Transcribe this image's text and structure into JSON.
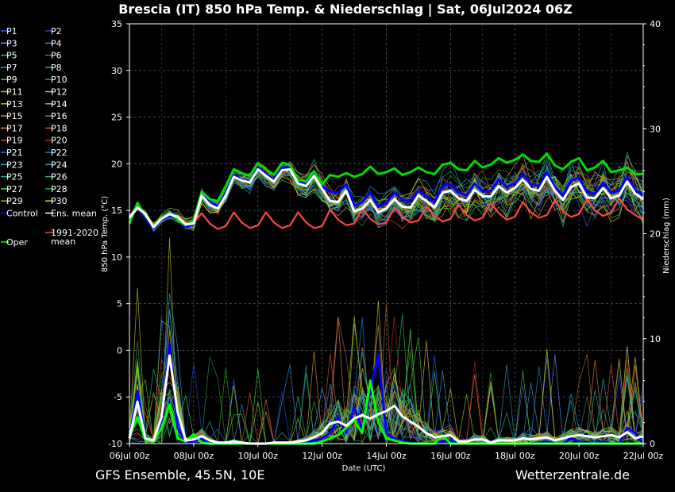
{
  "chart_data": {
    "type": "line",
    "title": "Brescia  (IT)  850 hPa Temp. & Niederschlag | Sat, 06Jul2024 06Z",
    "xlabel": "Date (UTC)",
    "ylabel_left": "850 hPa Temp. (°C)",
    "ylabel_right": "Niederschlag (mm)",
    "footer_left": "GFS Ensemble, 45.5N, 10E",
    "footer_right": "Wetterzentrale.de",
    "ylim_left": [
      -10,
      35
    ],
    "yticks_left": [
      "35",
      "30",
      "25",
      "20",
      "15",
      "10",
      "5",
      "0",
      "-5",
      "-10"
    ],
    "ylim_right": [
      0,
      40
    ],
    "yticks_right": [
      "40",
      "30",
      "20",
      "10",
      "0"
    ],
    "xlim_days": [
      0,
      16
    ],
    "xticks": [
      "06Jul 00z",
      "08Jul 00z",
      "10Jul 00z",
      "12Jul 00z",
      "14Jul 00z",
      "16Jul 00z",
      "18Jul 00z",
      "20Jul 00z",
      "22Jul 00z"
    ],
    "grid": true,
    "legend": [
      {
        "label": "P1",
        "color": "#3355ff"
      },
      {
        "label": "P2",
        "color": "#2244cc"
      },
      {
        "label": "P3",
        "color": "#6688ff"
      },
      {
        "label": "P4",
        "color": "#2a8ee6"
      },
      {
        "label": "P5",
        "color": "#20b2aa"
      },
      {
        "label": "P6",
        "color": "#2e8b57"
      },
      {
        "label": "P7",
        "color": "#1fa88a"
      },
      {
        "label": "P8",
        "color": "#22bb66"
      },
      {
        "label": "P9",
        "color": "#44cc22"
      },
      {
        "label": "P10",
        "color": "#33aa11"
      },
      {
        "label": "P11",
        "color": "#bbbb22"
      },
      {
        "label": "P12",
        "color": "#ccbb44"
      },
      {
        "label": "P13",
        "color": "#ddaa11"
      },
      {
        "label": "P14",
        "color": "#dd9933"
      },
      {
        "label": "P15",
        "color": "#cc8844"
      },
      {
        "label": "P16",
        "color": "#aa6633"
      },
      {
        "label": "P17",
        "color": "#dd7744"
      },
      {
        "label": "P18",
        "color": "#cc5533"
      },
      {
        "label": "P19",
        "color": "#dd4422"
      },
      {
        "label": "P20",
        "color": "#bb2222"
      },
      {
        "label": "P21",
        "color": "#3366ff"
      },
      {
        "label": "P22",
        "color": "#2288cc"
      },
      {
        "label": "P23",
        "color": "#3399cc"
      },
      {
        "label": "P24",
        "color": "#2299bb"
      },
      {
        "label": "P25",
        "color": "#22aa88"
      },
      {
        "label": "P26",
        "color": "#33bb77"
      },
      {
        "label": "P27",
        "color": "#44cc44"
      },
      {
        "label": "P28",
        "color": "#22aa33"
      },
      {
        "label": "P29",
        "color": "#88cc22"
      },
      {
        "label": "P30",
        "color": "#dddd00"
      },
      {
        "label": "Control",
        "color": "#0000ff"
      },
      {
        "label": "Ens. mean",
        "color": "#ffffff"
      },
      {
        "label": "1991-2020 mean",
        "color": "#ff4444"
      },
      {
        "label": "Oper",
        "color": "#00ff00"
      }
    ],
    "x_days": [
      0,
      0.25,
      0.5,
      0.75,
      1,
      1.25,
      1.5,
      1.75,
      2,
      2.25,
      2.5,
      2.75,
      3,
      3.25,
      3.5,
      3.75,
      4,
      4.25,
      4.5,
      4.75,
      5,
      5.25,
      5.5,
      5.75,
      6,
      6.25,
      6.5,
      6.75,
      7,
      7.25,
      7.5,
      7.75,
      8,
      8.25,
      8.5,
      8.75,
      9,
      9.25,
      9.5,
      9.75,
      10,
      10.25,
      10.5,
      10.75,
      11,
      11.25,
      11.5,
      11.75,
      12,
      12.25,
      12.5,
      12.75,
      13,
      13.25,
      13.5,
      13.75,
      14,
      14.25,
      14.5,
      14.75,
      15,
      15.25,
      15.5,
      15.75,
      16
    ],
    "series": [
      {
        "name": "Ens. mean",
        "axis": "temp",
        "values": [
          14.2,
          15.3,
          14.6,
          13.2,
          14.1,
          14.6,
          14.3,
          13.5,
          13.6,
          16.6,
          15.6,
          15.2,
          16.6,
          18.6,
          18.2,
          18.0,
          19.4,
          18.7,
          18.1,
          19.3,
          19.4,
          17.9,
          17.6,
          18.7,
          17.3,
          16.0,
          15.9,
          17.1,
          14.9,
          15.2,
          16.1,
          14.8,
          15.2,
          16.2,
          15.4,
          15.3,
          16.6,
          16.0,
          15.3,
          16.9,
          17.1,
          16.3,
          16.0,
          17.2,
          16.5,
          16.5,
          17.6,
          16.9,
          17.4,
          18.3,
          17.3,
          17.1,
          18.6,
          17.1,
          16.1,
          17.5,
          17.9,
          16.4,
          16.3,
          17.4,
          16.3,
          16.6,
          18.1,
          16.8,
          16.2
        ]
      },
      {
        "name": "Oper",
        "axis": "temp",
        "values": [
          13.6,
          15.8,
          14.4,
          13.4,
          14.2,
          14.7,
          14.0,
          13.4,
          13.9,
          17.0,
          16.2,
          16.0,
          17.6,
          19.4,
          19.0,
          18.7,
          20.1,
          19.4,
          18.8,
          20.1,
          19.9,
          18.3,
          18.1,
          19.2,
          17.8,
          18.8,
          18.6,
          19.0,
          18.6,
          18.9,
          19.7,
          18.9,
          19.1,
          19.5,
          18.8,
          19.1,
          19.6,
          19.1,
          18.9,
          19.9,
          20.1,
          19.4,
          19.3,
          20.3,
          19.6,
          19.9,
          20.6,
          20.1,
          20.4,
          21.0,
          20.3,
          20.2,
          21.1,
          19.8,
          19.4,
          20.2,
          20.6,
          19.3,
          19.6,
          20.3,
          19.1,
          19.3,
          19.6,
          18.9,
          18.9
        ]
      },
      {
        "name": "Control",
        "axis": "temp",
        "values": [
          14.0,
          15.5,
          14.2,
          13.1,
          14.0,
          14.4,
          14.1,
          13.2,
          13.5,
          16.8,
          16.0,
          15.4,
          16.9,
          18.8,
          18.3,
          18.1,
          19.6,
          18.9,
          18.3,
          19.6,
          19.6,
          18.1,
          17.9,
          18.8,
          17.6,
          17.0,
          16.9,
          17.8,
          15.5,
          15.9,
          16.9,
          15.4,
          15.8,
          16.9,
          16.1,
          16.0,
          17.1,
          16.5,
          15.9,
          17.6,
          17.8,
          16.9,
          16.6,
          17.9,
          17.0,
          17.1,
          18.3,
          17.5,
          17.9,
          18.9,
          17.8,
          17.6,
          19.1,
          17.5,
          16.6,
          18.2,
          18.5,
          17.0,
          16.8,
          18.0,
          16.9,
          17.1,
          18.6,
          17.2,
          16.6
        ]
      },
      {
        "name": "1991-2020 mean",
        "axis": "temp",
        "values": [
          14.4,
          15.3,
          14.2,
          13.6,
          14.1,
          14.8,
          14.0,
          13.3,
          13.6,
          14.7,
          13.6,
          13.0,
          13.3,
          14.8,
          13.7,
          13.1,
          13.4,
          14.8,
          13.7,
          13.1,
          13.4,
          14.8,
          13.7,
          13.1,
          13.3,
          15.1,
          14.0,
          13.4,
          13.6,
          15.2,
          14.1,
          13.5,
          13.7,
          15.3,
          14.3,
          13.7,
          13.9,
          15.4,
          14.4,
          13.8,
          14.1,
          15.6,
          14.5,
          13.9,
          14.2,
          15.8,
          14.7,
          14.0,
          14.3,
          15.9,
          14.8,
          14.2,
          14.5,
          16.1,
          14.9,
          14.3,
          14.6,
          16.2,
          15.0,
          14.4,
          14.8,
          16.3,
          15.1,
          14.5,
          14.0
        ]
      },
      {
        "name": "Ens. mean precip",
        "axis": "precip",
        "values": [
          0.5,
          4.0,
          0.5,
          0.3,
          2.5,
          8.4,
          3.0,
          0.3,
          0.4,
          0.7,
          0.3,
          0.1,
          0.1,
          0.2,
          0.1,
          0,
          0,
          0,
          0.1,
          0.1,
          0.1,
          0.2,
          0.3,
          0.6,
          1.0,
          1.9,
          2.1,
          1.7,
          2.4,
          2.7,
          2.4,
          2.8,
          3.1,
          3.6,
          2.6,
          2.1,
          1.6,
          1.0,
          0.6,
          0.7,
          0.8,
          0.2,
          0.2,
          0.4,
          0.4,
          0.1,
          0.3,
          0.3,
          0.3,
          0.5,
          0.4,
          0.5,
          0.6,
          0.3,
          0.5,
          0.7,
          0.8,
          0.7,
          0.6,
          0.7,
          0.8,
          0.6,
          1.1,
          0.5,
          0.7
        ]
      },
      {
        "name": "Oper precip",
        "axis": "precip",
        "values": [
          0.8,
          2.5,
          0.3,
          0.2,
          1.5,
          3.7,
          0.5,
          0.2,
          0.9,
          0.1,
          0,
          0,
          0,
          0,
          0,
          0,
          0,
          0,
          0,
          0,
          0,
          0,
          0,
          0,
          0.2,
          0.5,
          0.8,
          1.5,
          2.2,
          1.0,
          6.0,
          2.0,
          0.5,
          0.3,
          0.1,
          0,
          0,
          0,
          0,
          0.8,
          0,
          0,
          0,
          0,
          0,
          0,
          0,
          0,
          0,
          0,
          0,
          0,
          0,
          0,
          0,
          0,
          0,
          0,
          0,
          0,
          0,
          0,
          0,
          0,
          0
        ]
      },
      {
        "name": "Control precip",
        "axis": "precip",
        "values": [
          0.5,
          5.0,
          0.6,
          0.2,
          2.0,
          9.5,
          1.5,
          0.1,
          0.2,
          0.5,
          0.1,
          0,
          0,
          0,
          0,
          0,
          0,
          0,
          0,
          0,
          0,
          0,
          0.1,
          0.3,
          0.5,
          1.0,
          2.5,
          1.0,
          3.5,
          1.2,
          5.0,
          8.5,
          1.0,
          0.5,
          0.2,
          0.1,
          0,
          0,
          0,
          0.2,
          0.3,
          0,
          0,
          0,
          0,
          0,
          0,
          0,
          0,
          0,
          0,
          0.1,
          0.2,
          0,
          0,
          0.5,
          0.2,
          0.1,
          0,
          0.2,
          0,
          0,
          1.5,
          1.0,
          0
        ]
      }
    ]
  }
}
